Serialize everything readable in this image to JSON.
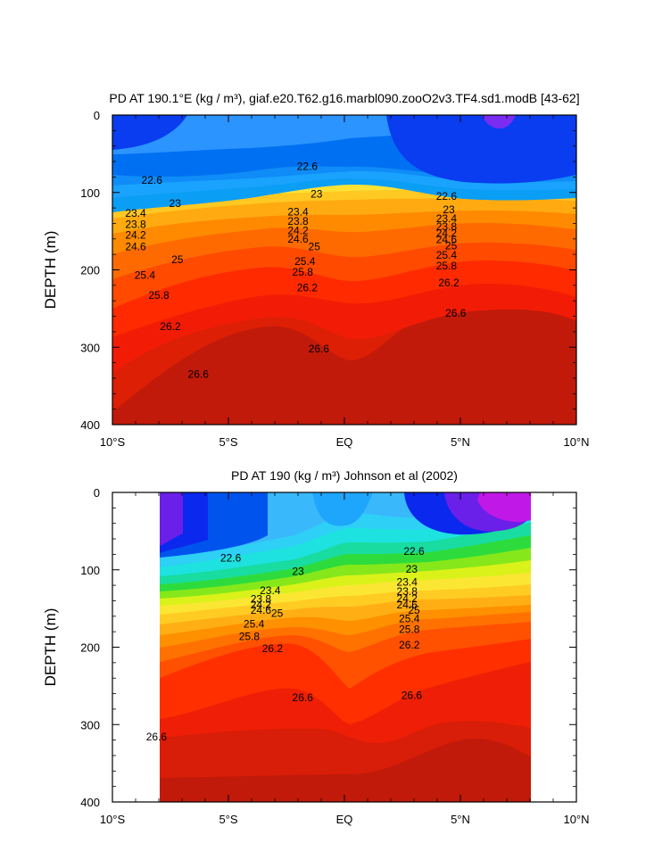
{
  "chart_data": [
    {
      "type": "contour",
      "title": "PD AT 190.1°E (kg / m³), giaf.e20.T62.g16.marbl090.zooO2v3.TF4.sd1.modB [43-62]",
      "ylabel": "DEPTH (m)",
      "xlabel": "",
      "xlim": [
        -10,
        10
      ],
      "ylim": [
        400,
        0
      ],
      "xticks": [
        {
          "v": -10,
          "label": "10°S"
        },
        {
          "v": -5,
          "label": "5°S"
        },
        {
          "v": 0,
          "label": "EQ"
        },
        {
          "v": 5,
          "label": "5°N"
        },
        {
          "v": 10,
          "label": "10°N"
        }
      ],
      "yticks": [
        {
          "v": 0,
          "label": "0"
        },
        {
          "v": 100,
          "label": "100"
        },
        {
          "v": 200,
          "label": "200"
        },
        {
          "v": 300,
          "label": "300"
        },
        {
          "v": 400,
          "label": "400"
        }
      ],
      "data_extent": [
        -10,
        10
      ],
      "contour_labels": [
        {
          "x": -8.3,
          "y": 84,
          "label": "22.6"
        },
        {
          "x": -7.3,
          "y": 114,
          "label": "23"
        },
        {
          "x": -9.0,
          "y": 127,
          "label": "23.4"
        },
        {
          "x": -9.0,
          "y": 141,
          "label": "23.8"
        },
        {
          "x": -9.0,
          "y": 155,
          "label": "24.2"
        },
        {
          "x": -9.0,
          "y": 170,
          "label": "24.6"
        },
        {
          "x": -7.2,
          "y": 187,
          "label": "25"
        },
        {
          "x": -8.6,
          "y": 207,
          "label": "25.4"
        },
        {
          "x": -8.0,
          "y": 233,
          "label": "25.8"
        },
        {
          "x": -7.5,
          "y": 273,
          "label": "26.2"
        },
        {
          "x": -6.3,
          "y": 335,
          "label": "26.6"
        },
        {
          "x": -1.6,
          "y": 66,
          "label": "22.6"
        },
        {
          "x": -1.2,
          "y": 102,
          "label": "23"
        },
        {
          "x": -2.0,
          "y": 125,
          "label": "23.4"
        },
        {
          "x": -2.0,
          "y": 137,
          "label": "23.8"
        },
        {
          "x": -2.0,
          "y": 149,
          "label": "24.2"
        },
        {
          "x": -2.0,
          "y": 160,
          "label": "24.6"
        },
        {
          "x": -1.3,
          "y": 170,
          "label": "25"
        },
        {
          "x": -1.7,
          "y": 189,
          "label": "25.4"
        },
        {
          "x": -1.8,
          "y": 203,
          "label": "25.8"
        },
        {
          "x": -1.6,
          "y": 223,
          "label": "26.2"
        },
        {
          "x": -1.1,
          "y": 302,
          "label": "26.6"
        },
        {
          "x": 4.4,
          "y": 105,
          "label": "22.6"
        },
        {
          "x": 4.5,
          "y": 122,
          "label": "23"
        },
        {
          "x": 4.4,
          "y": 134,
          "label": "23.4"
        },
        {
          "x": 4.4,
          "y": 144,
          "label": "23.8"
        },
        {
          "x": 4.4,
          "y": 153,
          "label": "24.2"
        },
        {
          "x": 4.4,
          "y": 161,
          "label": "24.6"
        },
        {
          "x": 4.6,
          "y": 169,
          "label": "25"
        },
        {
          "x": 4.4,
          "y": 181,
          "label": "25.4"
        },
        {
          "x": 4.4,
          "y": 195,
          "label": "25.8"
        },
        {
          "x": 4.5,
          "y": 217,
          "label": "26.2"
        },
        {
          "x": 4.8,
          "y": 256,
          "label": "26.6"
        }
      ]
    },
    {
      "type": "contour",
      "title": "PD AT 190 (kg / m³) Johnson et al (2002)",
      "ylabel": "DEPTH (m)",
      "xlabel": "",
      "xlim": [
        -10,
        10
      ],
      "ylim": [
        400,
        0
      ],
      "xticks": [
        {
          "v": -10,
          "label": "10°S"
        },
        {
          "v": -5,
          "label": "5°S"
        },
        {
          "v": 0,
          "label": "EQ"
        },
        {
          "v": 5,
          "label": "5°N"
        },
        {
          "v": 10,
          "label": "10°N"
        }
      ],
      "yticks": [
        {
          "v": 0,
          "label": "0"
        },
        {
          "v": 100,
          "label": "100"
        },
        {
          "v": 200,
          "label": "200"
        },
        {
          "v": 300,
          "label": "300"
        },
        {
          "v": 400,
          "label": "400"
        }
      ],
      "data_extent": [
        -8,
        8
      ],
      "contour_labels": [
        {
          "x": -4.9,
          "y": 85,
          "label": "22.6"
        },
        {
          "x": -2.0,
          "y": 102,
          "label": "23"
        },
        {
          "x": -3.2,
          "y": 127,
          "label": "23.4"
        },
        {
          "x": -3.6,
          "y": 138,
          "label": "23.8"
        },
        {
          "x": -3.6,
          "y": 145,
          "label": "24.2"
        },
        {
          "x": -3.6,
          "y": 152,
          "label": "24.6"
        },
        {
          "x": -2.9,
          "y": 156,
          "label": "25"
        },
        {
          "x": -3.9,
          "y": 170,
          "label": "25.4"
        },
        {
          "x": -4.1,
          "y": 186,
          "label": "25.8"
        },
        {
          "x": -3.1,
          "y": 202,
          "label": "26.2"
        },
        {
          "x": -1.8,
          "y": 265,
          "label": "26.6"
        },
        {
          "x": -8.1,
          "y": 316,
          "label": "26.6"
        },
        {
          "x": 3.0,
          "y": 76,
          "label": "22.6"
        },
        {
          "x": 2.9,
          "y": 99,
          "label": "23"
        },
        {
          "x": 2.7,
          "y": 116,
          "label": "23.4"
        },
        {
          "x": 2.7,
          "y": 128,
          "label": "23.8"
        },
        {
          "x": 2.7,
          "y": 137,
          "label": "24.2"
        },
        {
          "x": 2.7,
          "y": 145,
          "label": "24.6"
        },
        {
          "x": 3.0,
          "y": 152,
          "label": "25"
        },
        {
          "x": 2.8,
          "y": 163,
          "label": "25.4"
        },
        {
          "x": 2.8,
          "y": 177,
          "label": "25.8"
        },
        {
          "x": 2.8,
          "y": 197,
          "label": "26.2"
        },
        {
          "x": 2.9,
          "y": 262,
          "label": "26.6"
        }
      ]
    }
  ]
}
